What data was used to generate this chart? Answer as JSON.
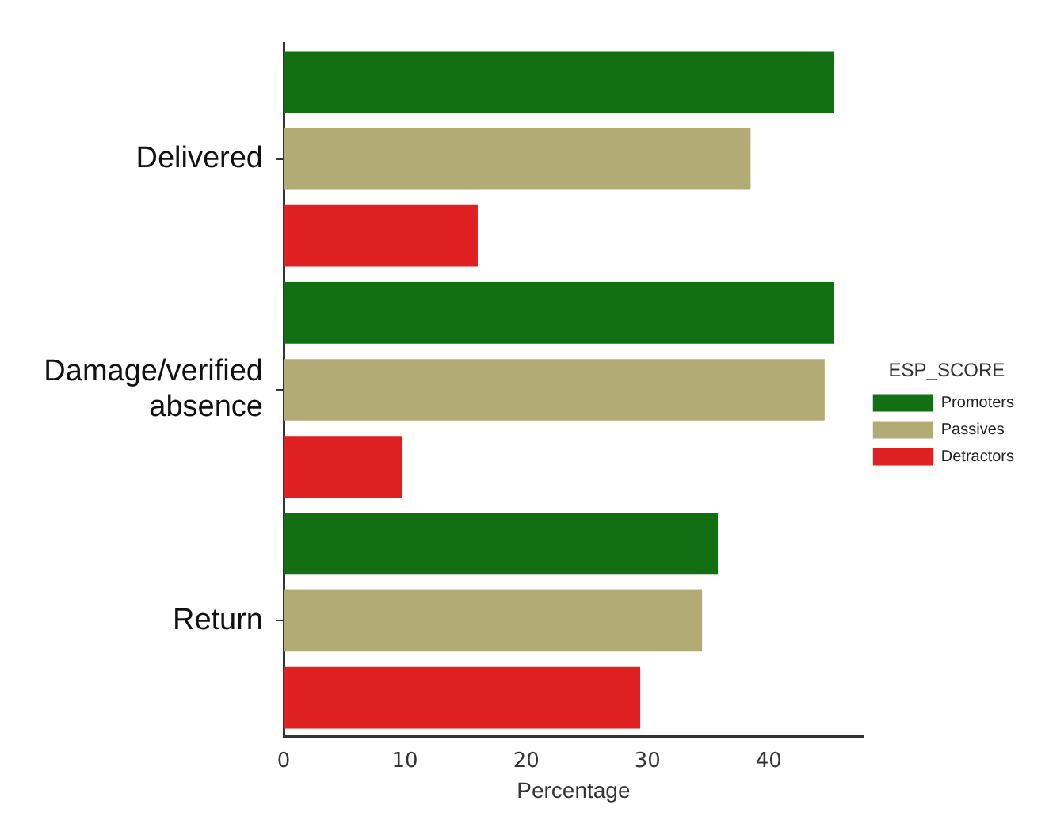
{
  "chart_data": {
    "type": "bar",
    "orientation": "horizontal",
    "xlabel": "Percentage",
    "legend_title": "ESP_SCORE",
    "legend": "right",
    "grid": false,
    "categories": [
      "Delivered",
      "Damage/verified absence",
      "Return"
    ],
    "series": [
      {
        "name": "Promoters",
        "color": "#127012",
        "values": [
          45.4,
          45.4,
          35.8
        ]
      },
      {
        "name": "Passives",
        "color": "#b2ab76",
        "values": [
          38.5,
          44.6,
          34.5
        ]
      },
      {
        "name": "Detractors",
        "color": "#de2020",
        "values": [
          16.0,
          9.8,
          29.4
        ]
      }
    ],
    "xlim": [
      0,
      47.8
    ],
    "xticks": [
      0,
      10,
      20,
      30,
      40
    ]
  }
}
